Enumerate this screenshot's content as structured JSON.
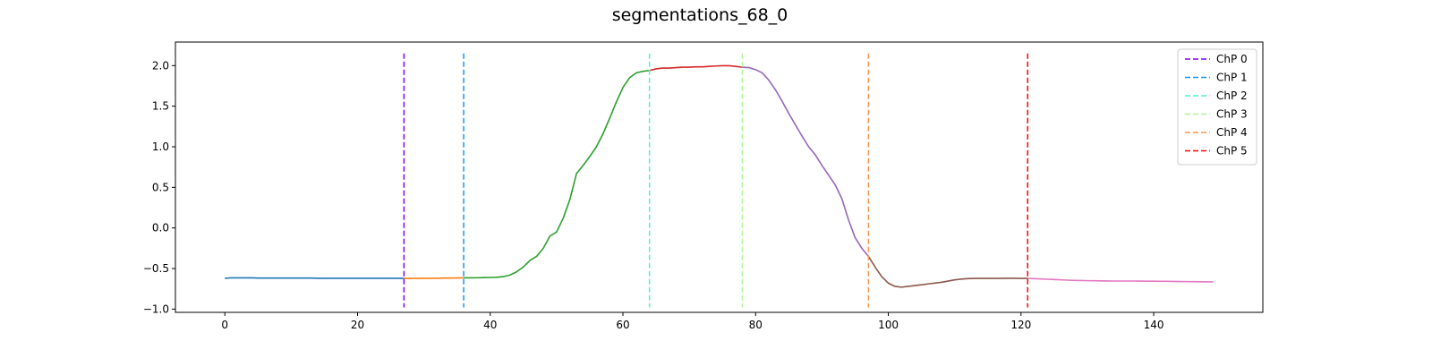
{
  "chart_data": {
    "type": "line",
    "title": "segmentations_68_0",
    "xlabel": "",
    "ylabel": "",
    "xlim": [
      -7.45,
      156.45
    ],
    "ylim": [
      -1.04,
      2.29
    ],
    "xticks": [
      0,
      20,
      40,
      60,
      80,
      100,
      120,
      140
    ],
    "yticks": [
      -1.0,
      -0.5,
      0.0,
      0.5,
      1.0,
      1.5,
      2.0
    ],
    "xtick_labels": [
      "0",
      "20",
      "40",
      "60",
      "80",
      "100",
      "120",
      "140"
    ],
    "ytick_labels": [
      "−1.0",
      "−0.5",
      "0.0",
      "0.5",
      "1.0",
      "1.5",
      "2.0"
    ],
    "grid": false,
    "legend_position": "top-right",
    "signal": {
      "x": [
        0,
        1,
        2,
        3,
        4,
        5,
        6,
        7,
        8,
        9,
        10,
        11,
        12,
        13,
        14,
        15,
        16,
        17,
        18,
        19,
        20,
        21,
        22,
        23,
        24,
        25,
        26,
        27,
        28,
        29,
        30,
        31,
        32,
        33,
        34,
        35,
        36,
        37,
        38,
        39,
        40,
        41,
        42,
        43,
        44,
        45,
        46,
        47,
        48,
        49,
        50,
        51,
        52,
        53,
        54,
        55,
        56,
        57,
        58,
        59,
        60,
        61,
        62,
        63,
        64,
        65,
        66,
        67,
        68,
        69,
        70,
        71,
        72,
        73,
        74,
        75,
        76,
        77,
        78,
        79,
        80,
        81,
        82,
        83,
        84,
        85,
        86,
        87,
        88,
        89,
        90,
        91,
        92,
        93,
        94,
        95,
        96,
        97,
        98,
        99,
        100,
        101,
        102,
        103,
        104,
        105,
        106,
        107,
        108,
        109,
        110,
        111,
        112,
        113,
        114,
        115,
        116,
        117,
        118,
        119,
        120,
        121,
        122,
        123,
        124,
        125,
        126,
        127,
        128,
        129,
        130,
        131,
        132,
        133,
        134,
        135,
        136,
        137,
        138,
        139,
        140,
        141,
        142,
        143,
        144,
        145,
        146,
        147,
        148,
        149
      ],
      "y": [
        -0.62,
        -0.615,
        -0.615,
        -0.615,
        -0.615,
        -0.617,
        -0.617,
        -0.617,
        -0.618,
        -0.618,
        -0.618,
        -0.618,
        -0.618,
        -0.618,
        -0.62,
        -0.62,
        -0.62,
        -0.62,
        -0.62,
        -0.62,
        -0.62,
        -0.62,
        -0.62,
        -0.62,
        -0.62,
        -0.62,
        -0.62,
        -0.622,
        -0.622,
        -0.622,
        -0.62,
        -0.62,
        -0.62,
        -0.618,
        -0.618,
        -0.616,
        -0.615,
        -0.615,
        -0.614,
        -0.612,
        -0.61,
        -0.608,
        -0.6,
        -0.58,
        -0.54,
        -0.48,
        -0.4,
        -0.35,
        -0.25,
        -0.1,
        -0.05,
        0.12,
        0.35,
        0.67,
        0.77,
        0.88,
        1.0,
        1.16,
        1.35,
        1.55,
        1.73,
        1.85,
        1.91,
        1.93,
        1.94,
        1.96,
        1.97,
        1.97,
        1.975,
        1.98,
        1.98,
        1.985,
        1.985,
        1.99,
        1.995,
        1.998,
        1.998,
        1.99,
        1.98,
        1.975,
        1.95,
        1.91,
        1.82,
        1.7,
        1.56,
        1.41,
        1.27,
        1.13,
        1.0,
        0.9,
        0.77,
        0.65,
        0.53,
        0.36,
        0.1,
        -0.12,
        -0.25,
        -0.35,
        -0.48,
        -0.6,
        -0.68,
        -0.72,
        -0.73,
        -0.72,
        -0.71,
        -0.7,
        -0.69,
        -0.68,
        -0.67,
        -0.655,
        -0.64,
        -0.63,
        -0.625,
        -0.622,
        -0.622,
        -0.622,
        -0.622,
        -0.622,
        -0.62,
        -0.62,
        -0.622,
        -0.622,
        -0.625,
        -0.628,
        -0.632,
        -0.636,
        -0.64,
        -0.643,
        -0.646,
        -0.648,
        -0.65,
        -0.651,
        -0.652,
        -0.653,
        -0.654,
        -0.654,
        -0.654,
        -0.654,
        -0.655,
        -0.656,
        -0.656,
        -0.657,
        -0.658,
        -0.659,
        -0.66,
        -0.661,
        -0.662,
        -0.663,
        -0.664,
        -0.665
      ]
    },
    "segments": [
      {
        "x_start": 0,
        "x_end": 27,
        "color": "#1f77b4"
      },
      {
        "x_start": 27,
        "x_end": 36,
        "color": "#ff7f0e"
      },
      {
        "x_start": 36,
        "x_end": 64,
        "color": "#2ca02c"
      },
      {
        "x_start": 64,
        "x_end": 78,
        "color": "#d62728"
      },
      {
        "x_start": 78,
        "x_end": 97,
        "color": "#9467bd"
      },
      {
        "x_start": 97,
        "x_end": 121,
        "color": "#8c564b"
      },
      {
        "x_start": 121,
        "x_end": 149,
        "color": "#e377c2"
      }
    ],
    "changepoints": [
      {
        "name": "ChP 0",
        "x": 27,
        "color": "#8000ff"
      },
      {
        "name": "ChP 1",
        "x": 36,
        "color": "#1996f3"
      },
      {
        "name": "ChP 2",
        "x": 64,
        "color": "#4df3ce"
      },
      {
        "name": "ChP 3",
        "x": 78,
        "color": "#b2f396"
      },
      {
        "name": "ChP 4",
        "x": 97,
        "color": "#ff964f"
      },
      {
        "name": "ChP 5",
        "x": 121,
        "color": "#ff0000"
      }
    ]
  }
}
